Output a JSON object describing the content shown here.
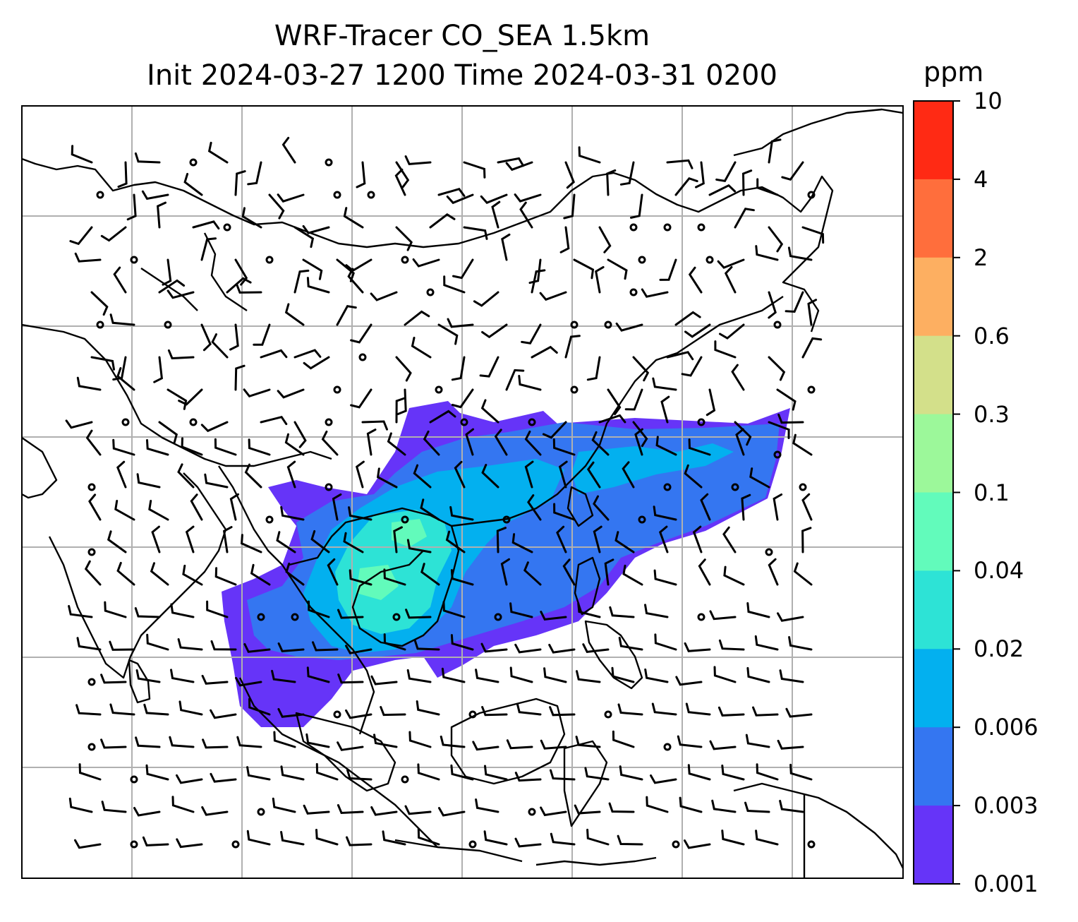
{
  "title": {
    "line1": "WRF-Tracer CO_SEA 1.5km",
    "line2": "Init 2024-03-27 1200 Time 2024-03-31 0200"
  },
  "colorbar": {
    "unit": "ppm",
    "ticks": [
      "10",
      "4",
      "2",
      "0.6",
      "0.3",
      "0.1",
      "0.04",
      "0.02",
      "0.006",
      "0.003",
      "0.001"
    ],
    "colors": [
      "#ff2a14",
      "#ff6e3c",
      "#fdaf61",
      "#d3e08a",
      "#9cf89a",
      "#62fbbb",
      "#2de3d6",
      "#03b0ef",
      "#3476f1",
      "#6634f8"
    ]
  },
  "map": {
    "region": "Southeast and East Asia",
    "grid": true,
    "plume_colors": {
      "lowest": "#6634f8",
      "low": "#3476f1",
      "mid": "#03b0ef",
      "high": "#2de3d6",
      "peak": "#62fbbb"
    },
    "wind_barbs": true
  }
}
